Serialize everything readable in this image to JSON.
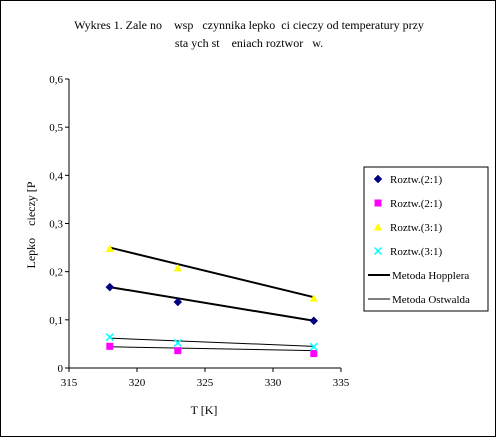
{
  "chart_data": {
    "type": "scatter",
    "title_line1": "Wykres 1. Zale no    wsp   czynnika lepko  ci cieczy od temperatury przy",
    "title_line2": "sta ych st    eniach roztwor   w.",
    "xlabel": "T [K]",
    "ylabel": "Lepko    cieczy [P",
    "xlim": [
      315,
      335
    ],
    "ylim": [
      0,
      0.6
    ],
    "x_ticks": [
      "315",
      "320",
      "325",
      "330",
      "335"
    ],
    "y_ticks": [
      "0",
      "0,1",
      "0,2",
      "0,3",
      "0,4",
      "0,5",
      "0,6"
    ],
    "grid": false,
    "legend_position": "right",
    "series": [
      {
        "name": "Roztw.(2:1)",
        "marker": "diamond",
        "color": "#000080",
        "points": [
          [
            318,
            0.168
          ],
          [
            323,
            0.137
          ],
          [
            333,
            0.098
          ]
        ]
      },
      {
        "name": "Roztw.(2:1)",
        "marker": "square",
        "color": "#ff00ff",
        "points": [
          [
            318,
            0.045
          ],
          [
            323,
            0.036
          ],
          [
            333,
            0.03
          ]
        ]
      },
      {
        "name": "Roztw.(3:1)",
        "marker": "triangle",
        "color": "#ffff00",
        "points": [
          [
            318,
            0.248
          ],
          [
            323,
            0.208
          ],
          [
            333,
            0.145
          ]
        ]
      },
      {
        "name": "Roztw.(3:1)",
        "marker": "x",
        "color": "#00ffff",
        "points": [
          [
            318,
            0.064
          ],
          [
            323,
            0.052
          ],
          [
            333,
            0.044
          ]
        ]
      }
    ],
    "lines": [
      {
        "name": "Metoda Hopplera",
        "width": 2,
        "color": "#000000",
        "segments": [
          [
            [
              318,
              0.25
            ],
            [
              333,
              0.147
            ]
          ],
          [
            [
              318,
              0.168
            ],
            [
              333,
              0.098
            ]
          ]
        ]
      },
      {
        "name": "Metoda Ostwalda",
        "width": 1,
        "color": "#000000",
        "segments": [
          [
            [
              318,
              0.062
            ],
            [
              333,
              0.045
            ]
          ],
          [
            [
              318,
              0.044
            ],
            [
              333,
              0.036
            ]
          ]
        ]
      }
    ]
  }
}
